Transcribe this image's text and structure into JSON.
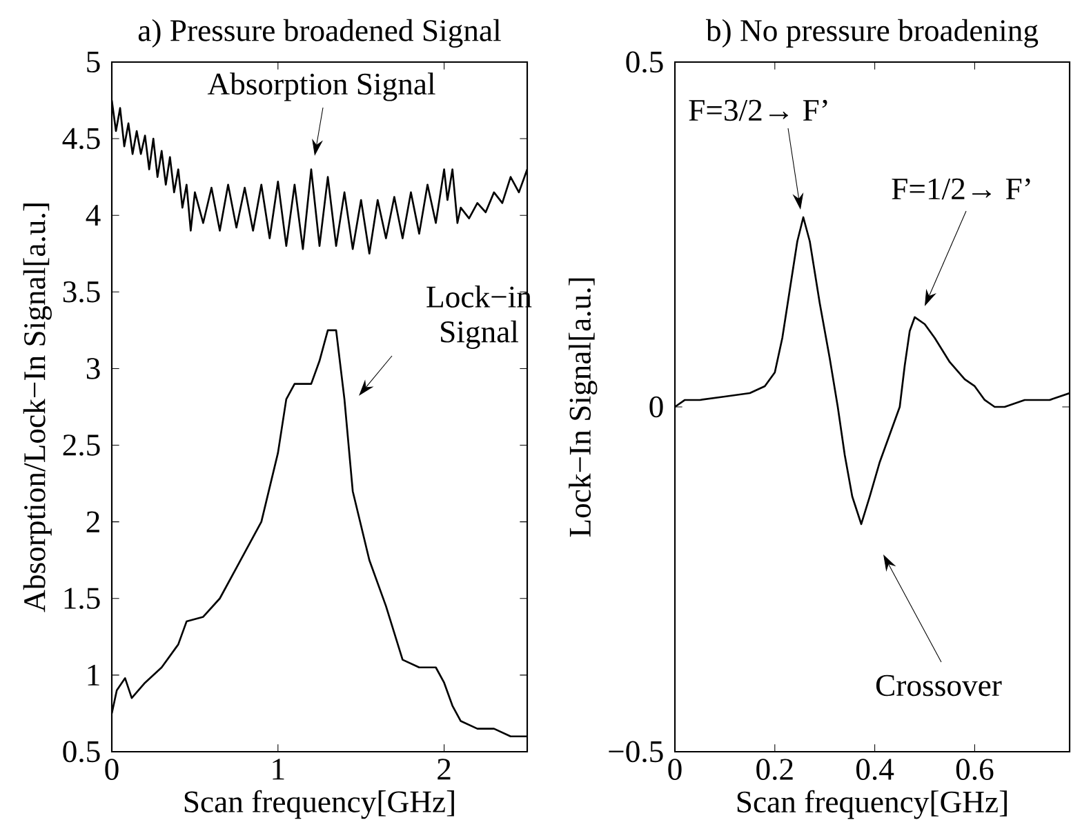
{
  "chart_data": [
    {
      "type": "line",
      "title": "a) Pressure broadened Signal",
      "xlabel": "Scan frequency[GHz]",
      "ylabel": "Absorption/Lock−In Signal[a.u.]",
      "xlim": [
        0,
        2.5
      ],
      "ylim": [
        0.5,
        5
      ],
      "xticks": [
        0,
        1,
        2
      ],
      "yticks": [
        0.5,
        1,
        1.5,
        2,
        2.5,
        3,
        3.5,
        4,
        4.5,
        5
      ],
      "series": [
        {
          "color": "#000000",
          "x": [
            0,
            0.025,
            0.05,
            0.075,
            0.1,
            0.125,
            0.15,
            0.175,
            0.2,
            0.225,
            0.25,
            0.275,
            0.3,
            0.325,
            0.35,
            0.375,
            0.4,
            0.425,
            0.45,
            0.475,
            0.5,
            0.55,
            0.6,
            0.65,
            0.7,
            0.75,
            0.8,
            0.85,
            0.9,
            0.95,
            1.0,
            1.05,
            1.1,
            1.15,
            1.2,
            1.25,
            1.3,
            1.35,
            1.4,
            1.45,
            1.5,
            1.55,
            1.6,
            1.65,
            1.7,
            1.75,
            1.8,
            1.85,
            1.9,
            1.95,
            2.0,
            2.02,
            2.05,
            2.08,
            2.1,
            2.15,
            2.2,
            2.25,
            2.3,
            2.35,
            2.4,
            2.45,
            2.5
          ],
          "values": [
            4.75,
            4.55,
            4.7,
            4.45,
            4.6,
            4.4,
            4.55,
            4.4,
            4.52,
            4.3,
            4.5,
            4.25,
            4.42,
            4.2,
            4.38,
            4.15,
            4.3,
            4.05,
            4.2,
            3.9,
            4.15,
            3.95,
            4.18,
            3.9,
            4.2,
            3.92,
            4.18,
            3.9,
            4.2,
            3.85,
            4.22,
            3.8,
            4.2,
            3.78,
            4.3,
            3.8,
            4.25,
            3.8,
            4.15,
            3.78,
            4.1,
            3.75,
            4.1,
            3.85,
            4.12,
            3.85,
            4.15,
            3.88,
            4.2,
            3.95,
            4.3,
            4.1,
            4.3,
            3.95,
            4.05,
            3.98,
            4.08,
            4.02,
            4.15,
            4.08,
            4.25,
            4.15,
            4.3
          ]
        },
        {
          "color": "#000000",
          "x": [
            0,
            0.03,
            0.08,
            0.12,
            0.2,
            0.3,
            0.4,
            0.45,
            0.55,
            0.65,
            0.75,
            0.85,
            0.9,
            1.0,
            1.05,
            1.1,
            1.2,
            1.25,
            1.3,
            1.35,
            1.4,
            1.45,
            1.55,
            1.65,
            1.75,
            1.85,
            1.95,
            2.0,
            2.05,
            2.1,
            2.2,
            2.3,
            2.4,
            2.5
          ],
          "values": [
            0.75,
            0.9,
            0.98,
            0.85,
            0.95,
            1.05,
            1.2,
            1.35,
            1.38,
            1.5,
            1.7,
            1.9,
            2.0,
            2.45,
            2.8,
            2.9,
            2.9,
            3.05,
            3.25,
            3.25,
            2.8,
            2.2,
            1.75,
            1.45,
            1.1,
            1.05,
            1.05,
            0.95,
            0.8,
            0.7,
            0.65,
            0.65,
            0.6,
            0.6
          ]
        }
      ],
      "annotations": [
        "Absorption Signal",
        "Lock−in Signal"
      ]
    },
    {
      "type": "line",
      "title": "b) No pressure broadening",
      "xlabel": "Scan frequency[GHz]",
      "ylabel": "Lock−In Signal[a.u.]",
      "xlim": [
        0,
        0.79
      ],
      "ylim": [
        -0.5,
        0.5
      ],
      "xticks": [
        0,
        0.2,
        0.4,
        0.6
      ],
      "yticks": [
        {
          "value": -0.5,
          "label": "−0.5"
        },
        0,
        0.5
      ],
      "series": [
        {
          "color": "#000000",
          "x": [
            0,
            0.02,
            0.05,
            0.1,
            0.15,
            0.18,
            0.2,
            0.215,
            0.23,
            0.245,
            0.257,
            0.27,
            0.29,
            0.31,
            0.326,
            0.34,
            0.355,
            0.373,
            0.39,
            0.41,
            0.43,
            0.45,
            0.46,
            0.47,
            0.48,
            0.5,
            0.52,
            0.55,
            0.58,
            0.6,
            0.62,
            0.64,
            0.66,
            0.7,
            0.75,
            0.79
          ],
          "values": [
            0.0,
            0.01,
            0.01,
            0.015,
            0.02,
            0.03,
            0.05,
            0.1,
            0.17,
            0.24,
            0.275,
            0.24,
            0.15,
            0.07,
            0.0,
            -0.07,
            -0.13,
            -0.17,
            -0.13,
            -0.08,
            -0.04,
            0.0,
            0.06,
            0.11,
            0.13,
            0.12,
            0.1,
            0.065,
            0.04,
            0.03,
            0.01,
            0.0,
            0.0,
            0.01,
            0.01,
            0.02
          ]
        }
      ],
      "annotations": [
        "F=3/2→ F’",
        "F=1/2→ F’",
        "Crossover"
      ]
    }
  ]
}
